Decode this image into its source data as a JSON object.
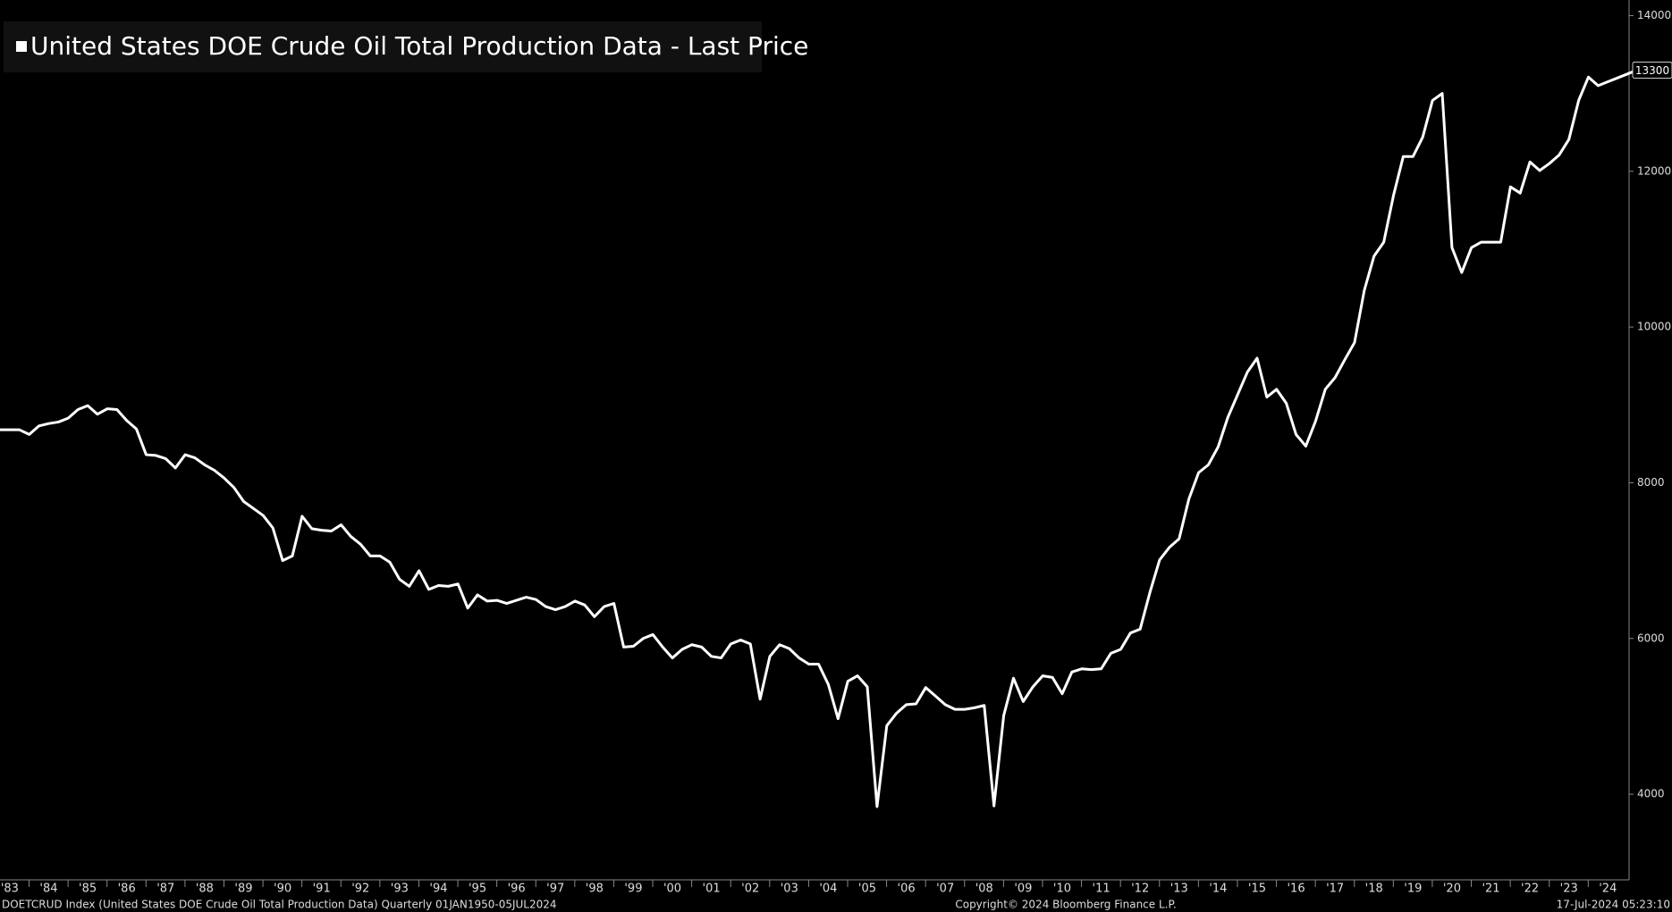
{
  "chart_data": {
    "type": "line",
    "legend": "United States DOE Crude Oil Total Production Data - Last Price",
    "footer_left": "DOETCRUD Index (United States DOE Crude Oil Total Production Data)  Quarterly 01JAN1950-05JUL2024",
    "footer_center": "Copyright© 2024 Bloomberg Finance L.P.",
    "footer_right": "17-Jul-2024 05:23:10",
    "xlim": [
      1982.75,
      2024.75
    ],
    "ylim": [
      2900,
      14200
    ],
    "yticks": [
      4000,
      6000,
      8000,
      10000,
      12000,
      14000
    ],
    "xticks": [
      {
        "value": 1983,
        "label": "'83"
      },
      {
        "value": 1984,
        "label": "'84"
      },
      {
        "value": 1985,
        "label": "'85"
      },
      {
        "value": 1986,
        "label": "'86"
      },
      {
        "value": 1987,
        "label": "'87"
      },
      {
        "value": 1988,
        "label": "'88"
      },
      {
        "value": 1989,
        "label": "'89"
      },
      {
        "value": 1990,
        "label": "'90"
      },
      {
        "value": 1991,
        "label": "'91"
      },
      {
        "value": 1992,
        "label": "'92"
      },
      {
        "value": 1993,
        "label": "'93"
      },
      {
        "value": 1994,
        "label": "'94"
      },
      {
        "value": 1995,
        "label": "'95"
      },
      {
        "value": 1996,
        "label": "'96"
      },
      {
        "value": 1997,
        "label": "'97"
      },
      {
        "value": 1998,
        "label": "'98"
      },
      {
        "value": 1999,
        "label": "'99"
      },
      {
        "value": 2000,
        "label": "'00"
      },
      {
        "value": 2001,
        "label": "'01"
      },
      {
        "value": 2002,
        "label": "'02"
      },
      {
        "value": 2003,
        "label": "'03"
      },
      {
        "value": 2004,
        "label": "'04"
      },
      {
        "value": 2005,
        "label": "'05"
      },
      {
        "value": 2006,
        "label": "'06"
      },
      {
        "value": 2007,
        "label": "'07"
      },
      {
        "value": 2008,
        "label": "'08"
      },
      {
        "value": 2009,
        "label": "'09"
      },
      {
        "value": 2010,
        "label": "'10"
      },
      {
        "value": 2011,
        "label": "'11"
      },
      {
        "value": 2012,
        "label": "'12"
      },
      {
        "value": 2013,
        "label": "'13"
      },
      {
        "value": 2014,
        "label": "'14"
      },
      {
        "value": 2015,
        "label": "'15"
      },
      {
        "value": 2016,
        "label": "'16"
      },
      {
        "value": 2017,
        "label": "'17"
      },
      {
        "value": 2018,
        "label": "'18"
      },
      {
        "value": 2019,
        "label": "'19"
      },
      {
        "value": 2020,
        "label": "'20"
      },
      {
        "value": 2021,
        "label": "'21"
      },
      {
        "value": 2022,
        "label": "'22"
      },
      {
        "value": 2023,
        "label": "'23"
      },
      {
        "value": 2024,
        "label": "'24"
      }
    ],
    "x": [
      1982.75,
      1983,
      1983.25,
      1983.5,
      1983.75,
      1984,
      1984.25,
      1984.5,
      1984.75,
      1985,
      1985.25,
      1985.5,
      1985.75,
      1986,
      1986.25,
      1986.5,
      1986.75,
      1987,
      1987.25,
      1987.5,
      1987.75,
      1988,
      1988.25,
      1988.5,
      1988.75,
      1989,
      1989.25,
      1989.5,
      1989.75,
      1990,
      1990.25,
      1990.5,
      1990.75,
      1991,
      1991.25,
      1991.5,
      1991.75,
      1992,
      1992.25,
      1992.5,
      1992.75,
      1993,
      1993.25,
      1993.5,
      1993.75,
      1994,
      1994.25,
      1994.5,
      1994.75,
      1995,
      1995.25,
      1995.5,
      1995.75,
      1996,
      1996.25,
      1996.5,
      1996.75,
      1997,
      1997.25,
      1997.5,
      1997.75,
      1998,
      1998.25,
      1998.5,
      1998.75,
      1999,
      1999.25,
      1999.5,
      1999.75,
      2000,
      2000.25,
      2000.5,
      2000.75,
      2001,
      2001.25,
      2001.5,
      2001.75,
      2002,
      2002.25,
      2002.5,
      2002.75,
      2003,
      2003.25,
      2003.5,
      2003.75,
      2004,
      2004.25,
      2004.5,
      2004.75,
      2005,
      2005.25,
      2005.5,
      2005.75,
      2006,
      2006.25,
      2006.5,
      2006.75,
      2007,
      2007.25,
      2007.5,
      2007.75,
      2008,
      2008.25,
      2008.5,
      2008.75,
      2009,
      2009.25,
      2009.5,
      2009.75,
      2010,
      2010.25,
      2010.5,
      2010.75,
      2011,
      2011.25,
      2011.5,
      2011.75,
      2012,
      2012.25,
      2012.5,
      2012.75,
      2013,
      2013.25,
      2013.5,
      2013.75,
      2014,
      2014.25,
      2014.5,
      2014.75,
      2015,
      2015.25,
      2015.5,
      2015.75,
      2016,
      2016.25,
      2016.5,
      2016.75,
      2017,
      2017.25,
      2017.5,
      2017.75,
      2018,
      2018.25,
      2018.5,
      2018.75,
      2019,
      2019.25,
      2019.5,
      2019.75,
      2020,
      2020.25,
      2020.5,
      2020.75,
      2021,
      2021.25,
      2021.5,
      2021.75,
      2022,
      2022.25,
      2022.5,
      2022.75,
      2023,
      2023.25,
      2023.5,
      2023.75,
      2024,
      2024.25,
      2024.5,
      2024.75
    ],
    "series": [
      {
        "name": "United States DOE Crude Oil Total Production Data - Last Price",
        "color": "#ffffff",
        "values": [
          8680,
          8680,
          8680,
          8620,
          8730,
          8760,
          8780,
          8830,
          8940,
          8990,
          8880,
          8950,
          8940,
          8800,
          8690,
          8360,
          8350,
          8310,
          8190,
          8360,
          8320,
          8230,
          8160,
          8060,
          7940,
          7760,
          7670,
          7580,
          7420,
          7000,
          7060,
          7570,
          7410,
          7390,
          7380,
          7460,
          7310,
          7210,
          7060,
          7060,
          6980,
          6760,
          6670,
          6870,
          6630,
          6680,
          6670,
          6700,
          6390,
          6560,
          6480,
          6490,
          6450,
          6490,
          6530,
          6500,
          6410,
          6370,
          6410,
          6480,
          6430,
          6280,
          6410,
          6450,
          5890,
          5900,
          6000,
          6050,
          5890,
          5750,
          5860,
          5920,
          5890,
          5770,
          5750,
          5930,
          5980,
          5930,
          5220,
          5770,
          5920,
          5870,
          5750,
          5670,
          5670,
          5410,
          4970,
          5450,
          5520,
          5380,
          3840,
          4880,
          5040,
          5150,
          5160,
          5370,
          5260,
          5150,
          5090,
          5090,
          5110,
          5140,
          3850,
          5010,
          5490,
          5190,
          5380,
          5520,
          5500,
          5290,
          5570,
          5610,
          5600,
          5610,
          5810,
          5860,
          6070,
          6120,
          6590,
          7010,
          7170,
          7280,
          7790,
          8130,
          8230,
          8460,
          8840,
          9130,
          9420,
          9600,
          9100,
          9200,
          9020,
          8620,
          8470,
          8790,
          9200,
          9350,
          9580,
          9800,
          10470,
          10910,
          11090,
          11690,
          12190,
          12190,
          12440,
          12910,
          13000,
          11020,
          10700,
          11020,
          11090,
          11090,
          11090,
          11800,
          11720,
          12120,
          12010,
          12100,
          12210,
          12410,
          12910,
          13210,
          13100,
          13150,
          13200,
          13250,
          13300
        ]
      }
    ]
  }
}
